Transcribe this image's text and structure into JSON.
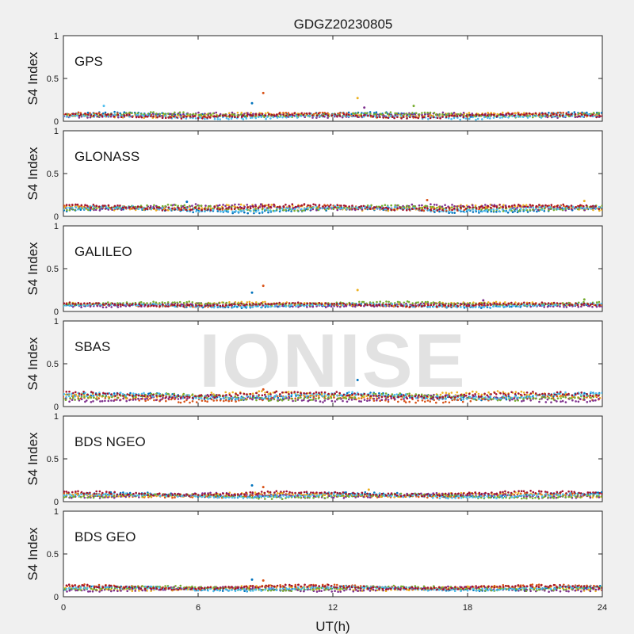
{
  "chart_data": {
    "type": "scatter",
    "title": "GDGZ20230805",
    "xlabel": "UT(h)",
    "ylabel": "S4 Index",
    "xlim": [
      0,
      24
    ],
    "ylim": [
      0,
      1
    ],
    "xticks": [
      "0",
      "6",
      "12",
      "18",
      "24"
    ],
    "yticks": [
      "0",
      "0.5",
      "1"
    ],
    "watermark": "IONISE",
    "grid": false,
    "series_colors": [
      "#0072BD",
      "#D95319",
      "#EDB120",
      "#7E2F8E",
      "#77AC30",
      "#4DBEEE",
      "#A2142F"
    ],
    "panels": [
      {
        "label": "GPS",
        "baseline": 0.07,
        "spread": 0.05,
        "outliers": [
          [
            8.4,
            0.21
          ],
          [
            8.9,
            0.33
          ],
          [
            13.1,
            0.27
          ],
          [
            13.4,
            0.16
          ],
          [
            15.6,
            0.18
          ],
          [
            1.8,
            0.18
          ]
        ]
      },
      {
        "label": "GLONASS",
        "baseline": 0.08,
        "spread": 0.06,
        "outliers": [
          [
            5.5,
            0.17
          ],
          [
            16.2,
            0.19
          ],
          [
            23.2,
            0.18
          ],
          [
            8.8,
            0.14
          ]
        ]
      },
      {
        "label": "GALILEO",
        "baseline": 0.08,
        "spread": 0.04,
        "outliers": [
          [
            8.4,
            0.22
          ],
          [
            8.9,
            0.3
          ],
          [
            13.1,
            0.25
          ],
          [
            18.7,
            0.13
          ],
          [
            23.2,
            0.14
          ]
        ]
      },
      {
        "label": "SBAS",
        "baseline": 0.12,
        "spread": 0.07,
        "outliers": [
          [
            13.1,
            0.31
          ],
          [
            8.9,
            0.2
          ]
        ]
      },
      {
        "label": "BDS NGEO",
        "baseline": 0.07,
        "spread": 0.05,
        "outliers": [
          [
            8.4,
            0.19
          ],
          [
            8.9,
            0.17
          ],
          [
            13.6,
            0.14
          ]
        ]
      },
      {
        "label": "BDS GEO",
        "baseline": 0.09,
        "spread": 0.05,
        "outliers": [
          [
            8.4,
            0.2
          ],
          [
            8.9,
            0.19
          ]
        ]
      }
    ]
  }
}
